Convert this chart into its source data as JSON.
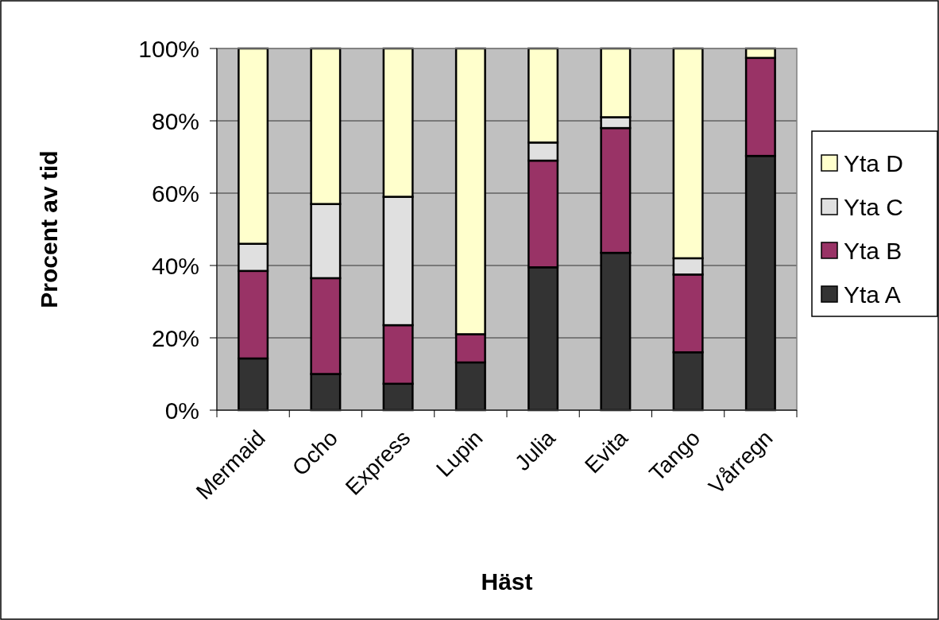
{
  "chart_data": {
    "type": "bar",
    "stacked": true,
    "xlabel": "Häst",
    "ylabel": "Procent av tid",
    "categories": [
      "Mermaid",
      "Ocho",
      "Express",
      "Lupin",
      "Julia",
      "Evita",
      "Tango",
      "Vårregn"
    ],
    "series": [
      {
        "name": "Yta A",
        "color": "#333333",
        "values": [
          14.3,
          10,
          7.3,
          13.2,
          39.5,
          43.5,
          16,
          70.3
        ]
      },
      {
        "name": "Yta B",
        "color": "#993366",
        "values": [
          24.2,
          26.5,
          16.2,
          7.8,
          29.5,
          34.5,
          21.5,
          27.1
        ]
      },
      {
        "name": "Yta C",
        "color": "#e0e0e0",
        "values": [
          7.5,
          20.5,
          35.5,
          0,
          5,
          3,
          4.5,
          0
        ]
      },
      {
        "name": "Yta D",
        "color": "#ffffcc",
        "values": [
          54,
          43,
          41,
          79,
          26,
          19,
          58,
          2.6
        ]
      }
    ],
    "ylim": [
      0,
      100
    ],
    "yticks": [
      {
        "value": 0,
        "label": "0%"
      },
      {
        "value": 20,
        "label": "20%"
      },
      {
        "value": 40,
        "label": "40%"
      },
      {
        "value": 60,
        "label": "60%"
      },
      {
        "value": 80,
        "label": "80%"
      },
      {
        "value": 100,
        "label": "100%"
      }
    ],
    "grid": "y",
    "legend": "right"
  }
}
